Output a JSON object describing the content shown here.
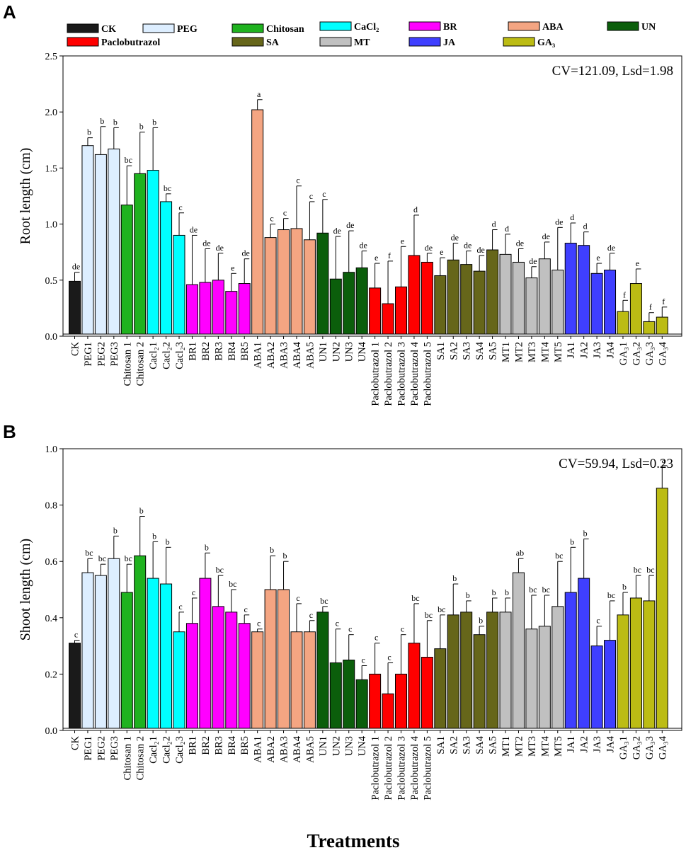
{
  "figure": {
    "xlabel": "Treatments",
    "legend": [
      {
        "label": "CK",
        "color": "#1a1a1a"
      },
      {
        "label": "PEG",
        "color": "#ddeeff"
      },
      {
        "label": "Chitosan",
        "color": "#1fb21f"
      },
      {
        "label": "CaCl₂",
        "color": "#00ffff"
      },
      {
        "label": "BR",
        "color": "#ff00ff"
      },
      {
        "label": "ABA",
        "color": "#f4a582"
      },
      {
        "label": "UN",
        "color": "#0b5e0b"
      },
      {
        "label": "Paclobutrazol",
        "color": "#ff0000"
      },
      {
        "label": "SA",
        "color": "#66661a"
      },
      {
        "label": "MT",
        "color": "#c0c0c0"
      },
      {
        "label": "JA",
        "color": "#3f3fff"
      },
      {
        "label": "GA₃",
        "color": "#bcbc14"
      }
    ]
  },
  "chart_data": [
    {
      "type": "bar",
      "panel": "A",
      "title": "",
      "xlabel": "Treatments",
      "ylabel": "Root length (cm)",
      "ylim": [
        0,
        2.5
      ],
      "yticks": [
        "0.0",
        "0.5",
        "1.0",
        "1.5",
        "2.0",
        "2.5"
      ],
      "annotation": "CV=121.09, Lsd=1.98",
      "categories": [
        "CK",
        "PEG1",
        "PEG2",
        "PEG3",
        "Chitosan 1",
        "Chitosan 2",
        "Cacl₂1",
        "Cacl₂2",
        "Cacl₂3",
        "BR1",
        "BR2",
        "BR3",
        "BR4",
        "BR5",
        "ABA1",
        "ABA2",
        "ABA3",
        "ABA4",
        "ABA5",
        "UN1",
        "UN2",
        "UN3",
        "UN4",
        "Paclobutrazol 1",
        "Paclobutrazol 2",
        "Paclobutrazol 3",
        "Paclobutrazol 4",
        "Paclobutrazol 5",
        "SA1",
        "SA2",
        "SA3",
        "SA4",
        "SA5",
        "MT1",
        "MT2",
        "MT3",
        "MT4",
        "MT5",
        "JA1",
        "JA2",
        "JA3",
        "JA4",
        "GA₃1",
        "GA₃2",
        "GA₃3",
        "GA₃4"
      ],
      "groups": [
        "CK",
        "PEG",
        "PEG",
        "PEG",
        "Chitosan",
        "Chitosan",
        "CaCl₂",
        "CaCl₂",
        "CaCl₂",
        "BR",
        "BR",
        "BR",
        "BR",
        "BR",
        "ABA",
        "ABA",
        "ABA",
        "ABA",
        "ABA",
        "UN",
        "UN",
        "UN",
        "UN",
        "Paclobutrazol",
        "Paclobutrazol",
        "Paclobutrazol",
        "Paclobutrazol",
        "Paclobutrazol",
        "SA",
        "SA",
        "SA",
        "SA",
        "SA",
        "MT",
        "MT",
        "MT",
        "MT",
        "MT",
        "JA",
        "JA",
        "JA",
        "JA",
        "GA₃",
        "GA₃",
        "GA₃",
        "GA₃"
      ],
      "values": [
        0.49,
        1.7,
        1.62,
        1.67,
        1.17,
        1.45,
        1.48,
        1.2,
        0.9,
        0.46,
        0.48,
        0.5,
        0.4,
        0.47,
        2.02,
        0.88,
        0.95,
        0.96,
        0.86,
        0.92,
        0.51,
        0.57,
        0.61,
        0.43,
        0.29,
        0.44,
        0.72,
        0.66,
        0.54,
        0.68,
        0.64,
        0.58,
        0.77,
        0.73,
        0.66,
        0.52,
        0.69,
        0.59,
        0.83,
        0.81,
        0.56,
        0.59,
        0.22,
        0.47,
        0.13,
        0.17
      ],
      "errors": [
        0.08,
        0.07,
        0.25,
        0.19,
        0.35,
        0.37,
        0.38,
        0.07,
        0.2,
        0.44,
        0.3,
        0.24,
        0.16,
        0.22,
        0.09,
        0.12,
        0.1,
        0.38,
        0.34,
        0.3,
        0.38,
        0.37,
        0.15,
        0.22,
        0.38,
        0.36,
        0.36,
        0.08,
        0.16,
        0.15,
        0.12,
        0.14,
        0.18,
        0.18,
        0.12,
        0.1,
        0.15,
        0.38,
        0.18,
        0.12,
        0.09,
        0.15,
        0.1,
        0.13,
        0.08,
        0.09
      ],
      "significance": [
        "de",
        "b",
        "b",
        "b",
        "bc",
        "b",
        "b",
        "bc",
        "c",
        "de",
        "de",
        "de",
        "e",
        "de",
        "a",
        "c",
        "c",
        "c",
        "c",
        "c",
        "de",
        "de",
        "de",
        "e",
        "f",
        "e",
        "d",
        "de",
        "e",
        "de",
        "de",
        "de",
        "d",
        "d",
        "de",
        "de",
        "de",
        "de",
        "d",
        "d",
        "e",
        "de",
        "f",
        "e",
        "f",
        "f"
      ]
    },
    {
      "type": "bar",
      "panel": "B",
      "title": "",
      "xlabel": "Treatments",
      "ylabel": "Shoot length (cm)",
      "ylim": [
        0,
        1.0
      ],
      "yticks": [
        "0.0",
        "0.2",
        "0.4",
        "0.6",
        "0.8",
        "1.0"
      ],
      "annotation": "CV=59.94, Lsd=0.23",
      "categories": [
        "CK",
        "PEG1",
        "PEG2",
        "PEG3",
        "Chitosan 1",
        "Chitosan 2",
        "Cacl₂1",
        "Cacl₂2",
        "Cacl₂3",
        "BR1",
        "BR2",
        "BR3",
        "BR4",
        "BR5",
        "ABA1",
        "ABA2",
        "ABA3",
        "ABA4",
        "ABA5",
        "UN1",
        "UN2",
        "UN3",
        "UN4",
        "Paclobutrazol 1",
        "Paclobutrazol 2",
        "Paclobutrazol 3",
        "Paclobutrazol 4",
        "Paclobutrazol 5",
        "SA1",
        "SA2",
        "SA3",
        "SA4",
        "SA5",
        "MT1",
        "MT2",
        "MT3",
        "MT4",
        "MT5",
        "JA1",
        "JA2",
        "JA3",
        "JA4",
        "GA₃1",
        "GA₃2",
        "GA₃3",
        "GA₃4"
      ],
      "groups": [
        "CK",
        "PEG",
        "PEG",
        "PEG",
        "Chitosan",
        "Chitosan",
        "CaCl₂",
        "CaCl₂",
        "CaCl₂",
        "BR",
        "BR",
        "BR",
        "BR",
        "BR",
        "ABA",
        "ABA",
        "ABA",
        "ABA",
        "ABA",
        "UN",
        "UN",
        "UN",
        "UN",
        "Paclobutrazol",
        "Paclobutrazol",
        "Paclobutrazol",
        "Paclobutrazol",
        "Paclobutrazol",
        "SA",
        "SA",
        "SA",
        "SA",
        "SA",
        "MT",
        "MT",
        "MT",
        "MT",
        "MT",
        "JA",
        "JA",
        "JA",
        "JA",
        "GA₃",
        "GA₃",
        "GA₃",
        "GA₃"
      ],
      "values": [
        0.31,
        0.56,
        0.55,
        0.61,
        0.49,
        0.62,
        0.54,
        0.52,
        0.35,
        0.38,
        0.54,
        0.44,
        0.42,
        0.38,
        0.35,
        0.5,
        0.5,
        0.35,
        0.35,
        0.42,
        0.24,
        0.25,
        0.18,
        0.2,
        0.13,
        0.2,
        0.31,
        0.26,
        0.29,
        0.41,
        0.42,
        0.34,
        0.42,
        0.42,
        0.56,
        0.36,
        0.37,
        0.44,
        0.49,
        0.54,
        0.3,
        0.32,
        0.41,
        0.47,
        0.46,
        0.86
      ],
      "errors": [
        0.01,
        0.05,
        0.04,
        0.08,
        0.1,
        0.14,
        0.13,
        0.13,
        0.07,
        0.09,
        0.09,
        0.11,
        0.08,
        0.03,
        0.01,
        0.12,
        0.1,
        0.1,
        0.04,
        0.02,
        0.12,
        0.09,
        0.05,
        0.11,
        0.11,
        0.14,
        0.14,
        0.13,
        0.12,
        0.11,
        0.04,
        0.03,
        0.05,
        0.05,
        0.05,
        0.12,
        0.11,
        0.16,
        0.16,
        0.14,
        0.07,
        0.14,
        0.08,
        0.08,
        0.09,
        0.08
      ],
      "significance": [
        "c",
        "bc",
        "bc",
        "b",
        "bc",
        "b",
        "b",
        "b",
        "c",
        "c",
        "b",
        "bc",
        "bc",
        "c",
        "c",
        "b",
        "b",
        "c",
        "c",
        "bc",
        "c",
        "c",
        "c",
        "c",
        "c",
        "c",
        "bc",
        "bc",
        "bc",
        "b",
        "b",
        "b",
        "b",
        "b",
        "ab",
        "bc",
        "bc",
        "bc",
        "b",
        "b",
        "c",
        "bc",
        "b",
        "bc",
        "bc",
        "a"
      ]
    }
  ]
}
